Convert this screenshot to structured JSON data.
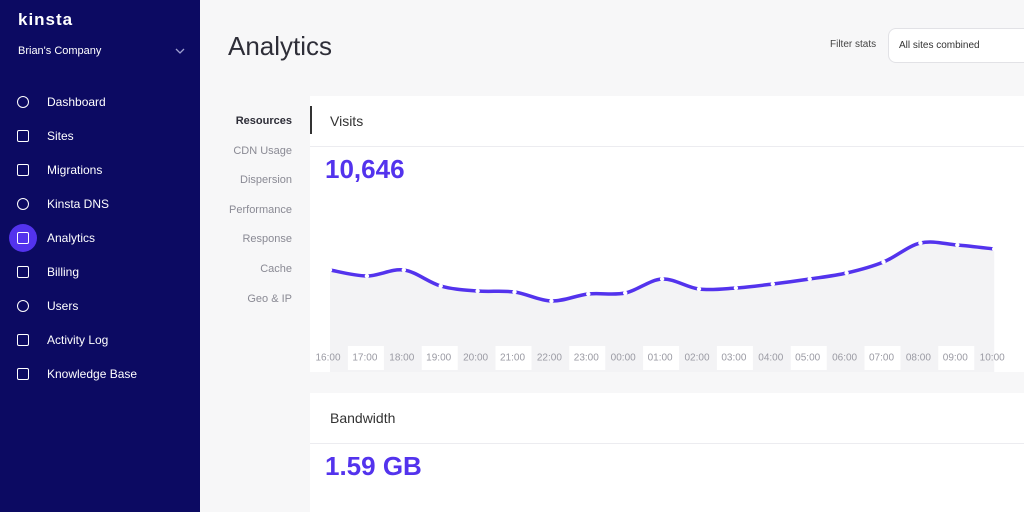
{
  "sidebar": {
    "logo": "Kinsta",
    "company": "Brian's Company",
    "nav": [
      "Dashboard",
      "Sites",
      "Migrations",
      "Kinsta DNS",
      "Analytics",
      "Billing",
      "Users",
      "Activity Log",
      "Knowledge Base"
    ]
  },
  "header": {
    "title": "Analytics",
    "filter_label": "Filter stats",
    "filter_value": "All sites combined"
  },
  "submenu": [
    "Resources",
    "CDN Usage",
    "Dispersion",
    "Performance",
    "Response",
    "Cache",
    "Geo & IP"
  ],
  "cards": [
    {
      "title": "Visits",
      "total": "10,646",
      "chart_data": {
        "type": "line",
        "categories": [
          "16:00",
          "17:00",
          "18:00",
          "19:00",
          "20:00",
          "21:00",
          "22:00",
          "23:00",
          "00:00",
          "01:00",
          "02:00",
          "03:00",
          "04:00",
          "05:00",
          "06:00",
          "07:00",
          "08:00",
          "09:00",
          "10:00"
        ],
        "values": [
          300,
          276,
          300,
          236,
          216,
          212,
          176,
          204,
          208,
          264,
          224,
          228,
          244,
          264,
          288,
          332,
          408,
          400,
          384
        ],
        "color": "#5333ed",
        "ylim": [
          0,
          780
        ]
      }
    },
    {
      "title": "Bandwidth",
      "total": "1.59 GB"
    }
  ]
}
